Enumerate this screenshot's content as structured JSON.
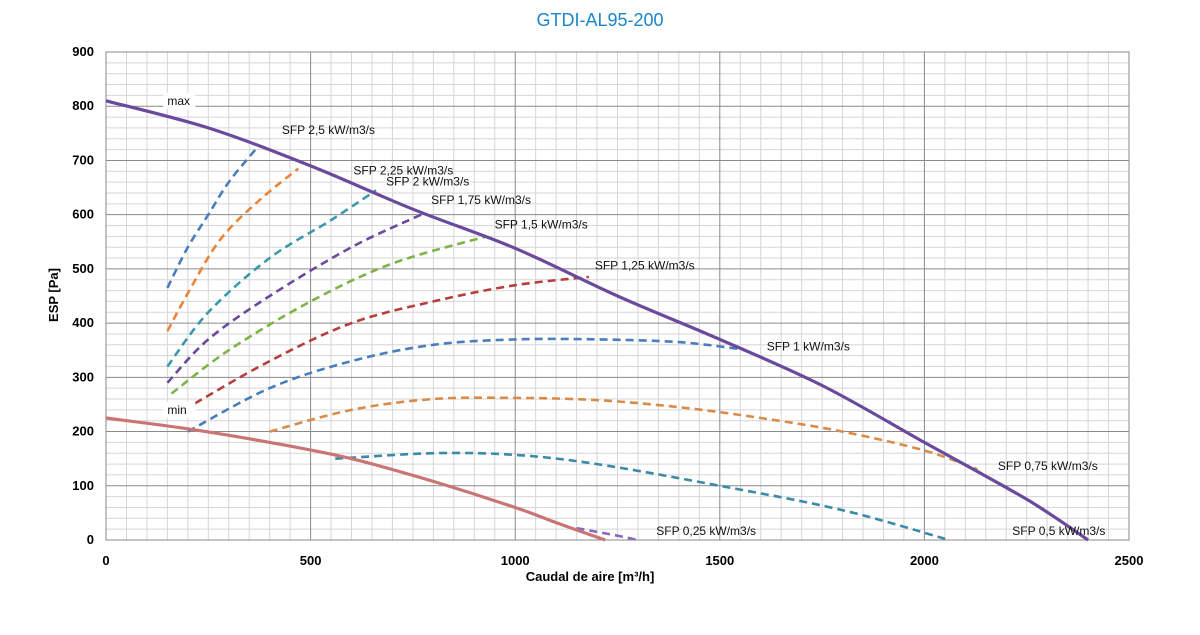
{
  "chart_data": {
    "type": "line",
    "title": "GTDI-AL95-200",
    "xlabel": "Caudal de aire [m³/h]",
    "ylabel": "ESP  [Pa]",
    "xlim": [
      0,
      2500
    ],
    "ylim": [
      0,
      900
    ],
    "x_ticks": [
      "0",
      "500",
      "1000",
      "1500",
      "2000",
      "2500"
    ],
    "y_ticks": [
      "0",
      "100",
      "200",
      "300",
      "400",
      "500",
      "600",
      "700",
      "800",
      "900"
    ],
    "grid": true,
    "colors": {
      "max": "#6a4a9c",
      "min": "#c97575",
      "title": "#1a86c8"
    },
    "series": [
      {
        "name": "max",
        "style": "solid",
        "color": "#6a4a9c",
        "points": [
          [
            0,
            810
          ],
          [
            250,
            760
          ],
          [
            500,
            690
          ],
          [
            750,
            610
          ],
          [
            1000,
            538
          ],
          [
            1250,
            450
          ],
          [
            1500,
            370
          ],
          [
            1750,
            285
          ],
          [
            2000,
            180
          ],
          [
            2250,
            75
          ],
          [
            2400,
            0
          ]
        ]
      },
      {
        "name": "min",
        "style": "solid",
        "color": "#c97575",
        "points": [
          [
            0,
            225
          ],
          [
            200,
            205
          ],
          [
            400,
            180
          ],
          [
            600,
            150
          ],
          [
            800,
            108
          ],
          [
            1000,
            60
          ],
          [
            1100,
            32
          ],
          [
            1220,
            0
          ]
        ]
      },
      {
        "name": "SFP 2,5 kW/m3/s",
        "style": "dashed",
        "color": "#4a7ebb",
        "points": [
          [
            150,
            465
          ],
          [
            200,
            540
          ],
          [
            250,
            600
          ],
          [
            300,
            660
          ],
          [
            365,
            720
          ]
        ]
      },
      {
        "name": "SFP 2,25 kW/m3/s",
        "style": "dashed",
        "color": "#e8853a",
        "points": [
          [
            150,
            385
          ],
          [
            200,
            455
          ],
          [
            280,
            555
          ],
          [
            380,
            630
          ],
          [
            470,
            685
          ]
        ]
      },
      {
        "name": "SFP 2 kW/m3/s",
        "style": "dashed",
        "color": "#3a9aaa",
        "points": [
          [
            150,
            320
          ],
          [
            250,
            420
          ],
          [
            400,
            520
          ],
          [
            550,
            590
          ],
          [
            660,
            645
          ]
        ]
      },
      {
        "name": "SFP 1,75 kW/m3/s",
        "style": "dashed",
        "color": "#6a4a9c",
        "points": [
          [
            150,
            290
          ],
          [
            250,
            370
          ],
          [
            400,
            450
          ],
          [
            600,
            540
          ],
          [
            770,
            600
          ]
        ]
      },
      {
        "name": "SFP 1,5 kW/m3/s",
        "style": "dashed",
        "color": "#7fb34a",
        "points": [
          [
            160,
            270
          ],
          [
            300,
            350
          ],
          [
            500,
            440
          ],
          [
            700,
            510
          ],
          [
            930,
            560
          ]
        ]
      },
      {
        "name": "SFP 1,25 kW/m3/s",
        "style": "dashed",
        "color": "#b83e3e",
        "points": [
          [
            190,
            240
          ],
          [
            400,
            330
          ],
          [
            600,
            400
          ],
          [
            800,
            440
          ],
          [
            1000,
            470
          ],
          [
            1180,
            485
          ]
        ]
      },
      {
        "name": "SFP 1 kW/m3/s",
        "style": "dashed",
        "color": "#4a7ebb",
        "points": [
          [
            200,
            200
          ],
          [
            400,
            280
          ],
          [
            600,
            330
          ],
          [
            800,
            360
          ],
          [
            1000,
            370
          ],
          [
            1200,
            370
          ],
          [
            1400,
            365
          ],
          [
            1550,
            352
          ]
        ]
      },
      {
        "name": "SFP 0,75 kW/m3/s",
        "style": "dashed",
        "color": "#d98b4a",
        "points": [
          [
            400,
            200
          ],
          [
            600,
            240
          ],
          [
            800,
            260
          ],
          [
            1000,
            262
          ],
          [
            1200,
            258
          ],
          [
            1400,
            245
          ],
          [
            1600,
            225
          ],
          [
            1800,
            200
          ],
          [
            2000,
            165
          ],
          [
            2130,
            130
          ]
        ]
      },
      {
        "name": "SFP 0,5 kW/m3/s",
        "style": "dashed",
        "color": "#3a8aa8",
        "points": [
          [
            560,
            150
          ],
          [
            800,
            160
          ],
          [
            1000,
            157
          ],
          [
            1200,
            140
          ],
          [
            1500,
            100
          ],
          [
            1800,
            55
          ],
          [
            2060,
            0
          ]
        ]
      },
      {
        "name": "SFP 0,25 kW/m3/s",
        "style": "dashed",
        "color": "#8a6abc",
        "points": [
          [
            1150,
            22
          ],
          [
            1200,
            15
          ],
          [
            1250,
            8
          ],
          [
            1300,
            0
          ]
        ]
      }
    ],
    "annotations": [
      {
        "text": "max",
        "x": 150,
        "y": 810
      },
      {
        "text": "min",
        "x": 150,
        "y": 240
      },
      {
        "text": "SFP 2,5 kW/m3/s",
        "x": 415,
        "y": 740
      },
      {
        "text": "SFP 2,25 kW/m3/s",
        "x": 590,
        "y": 665
      },
      {
        "text": "SFP 2 kW/m3/s",
        "x": 670,
        "y": 645
      },
      {
        "text": "SFP 1,75 kW/m3/s",
        "x": 780,
        "y": 610
      },
      {
        "text": "SFP 1,5 kW/m3/s",
        "x": 935,
        "y": 565
      },
      {
        "text": "SFP 1,25 kW/m3/s",
        "x": 1180,
        "y": 490
      },
      {
        "text": "SFP 1 kW/m3/s",
        "x": 1600,
        "y": 340
      },
      {
        "text": "SFP 0,75 kW/m3/s",
        "x": 2165,
        "y": 120
      },
      {
        "text": "SFP 0,5 kW/m3/s",
        "x": 2200,
        "y": 0
      },
      {
        "text": "SFP 0,25 kW/m3/s",
        "x": 1330,
        "y": 0
      }
    ]
  }
}
